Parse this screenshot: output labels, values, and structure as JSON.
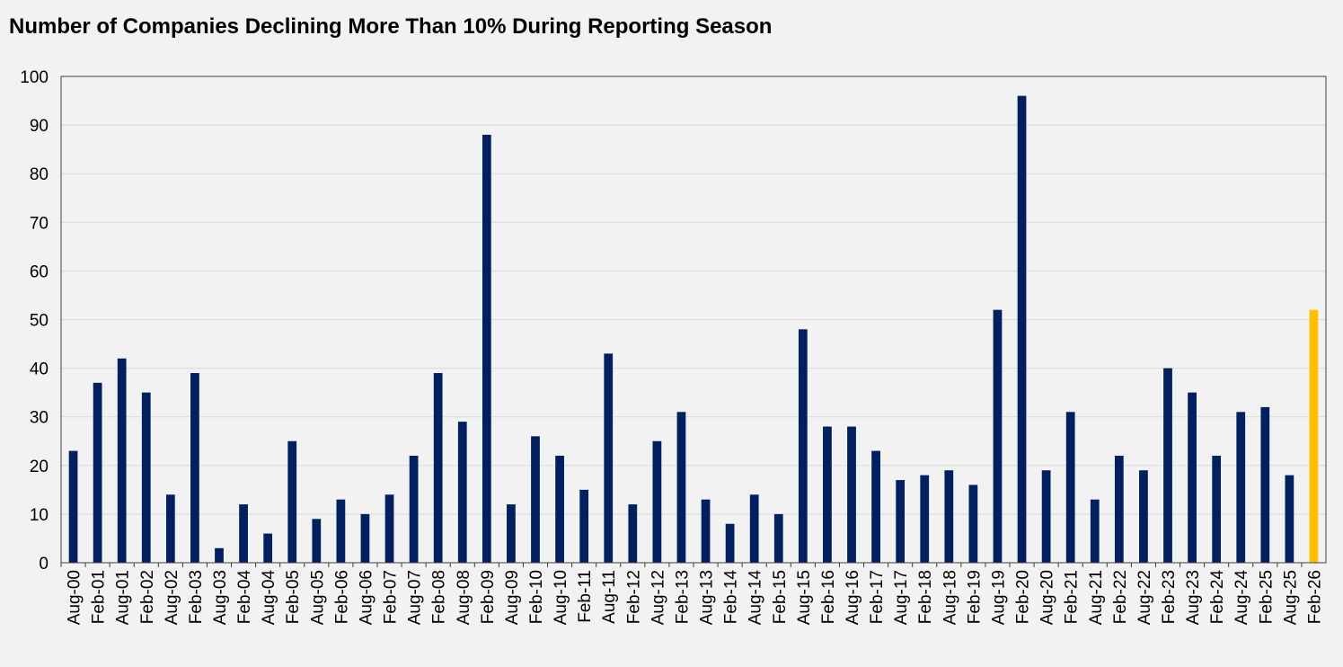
{
  "chart_data": {
    "type": "bar",
    "title": "Number of Companies Declining More Than 10% During Reporting Season",
    "xlabel": "",
    "ylabel": "",
    "ylim": [
      0,
      100
    ],
    "yticks": [
      0,
      10,
      20,
      30,
      40,
      50,
      60,
      70,
      80,
      90,
      100
    ],
    "grid": true,
    "legend": "none",
    "colors": {
      "bar": "#002060",
      "highlight": "#ffc000",
      "background": "#f2f2f2",
      "gridline": "#d9d9d9"
    },
    "highlight_category": "Feb-26",
    "categories": [
      "Aug-00",
      "Feb-01",
      "Aug-01",
      "Feb-02",
      "Aug-02",
      "Feb-03",
      "Aug-03",
      "Feb-04",
      "Aug-04",
      "Feb-05",
      "Aug-05",
      "Feb-06",
      "Aug-06",
      "Feb-07",
      "Aug-07",
      "Feb-08",
      "Aug-08",
      "Feb-09",
      "Aug-09",
      "Feb-10",
      "Aug-10",
      "Feb-11",
      "Aug-11",
      "Feb-12",
      "Aug-12",
      "Feb-13",
      "Aug-13",
      "Feb-14",
      "Aug-14",
      "Feb-15",
      "Aug-15",
      "Feb-16",
      "Aug-16",
      "Feb-17",
      "Aug-17",
      "Feb-18",
      "Aug-18",
      "Feb-19",
      "Aug-19",
      "Feb-20",
      "Aug-20",
      "Feb-21",
      "Aug-21",
      "Feb-22",
      "Aug-22",
      "Feb-23",
      "Aug-23",
      "Feb-24",
      "Aug-24",
      "Feb-25",
      "Aug-25",
      "Feb-26"
    ],
    "values": [
      23,
      37,
      42,
      35,
      14,
      39,
      3,
      12,
      6,
      25,
      9,
      13,
      10,
      14,
      22,
      39,
      29,
      88,
      12,
      26,
      22,
      15,
      43,
      12,
      25,
      31,
      13,
      8,
      14,
      10,
      48,
      28,
      28,
      23,
      17,
      18,
      19,
      16,
      52,
      96,
      19,
      31,
      13,
      22,
      19,
      40,
      35,
      22,
      31,
      32,
      18,
      52
    ]
  }
}
